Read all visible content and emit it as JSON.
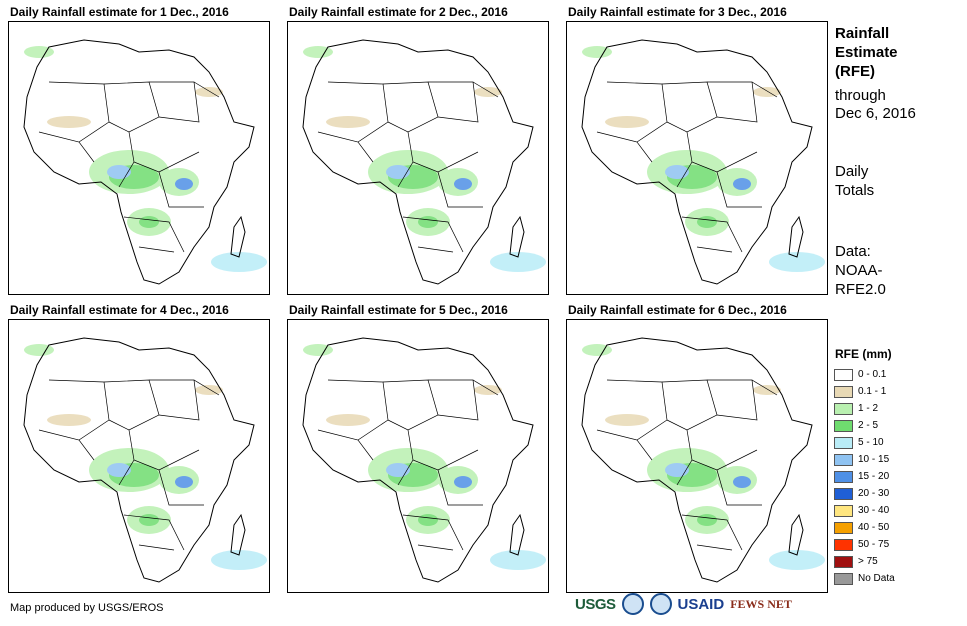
{
  "panels": [
    {
      "title": "Daily Rainfall estimate for 1 Dec., 2016"
    },
    {
      "title": "Daily Rainfall estimate for 2 Dec., 2016"
    },
    {
      "title": "Daily Rainfall estimate for 3 Dec., 2016"
    },
    {
      "title": "Daily Rainfall estimate for 4 Dec., 2016"
    },
    {
      "title": "Daily Rainfall estimate for 5 Dec., 2016"
    },
    {
      "title": "Daily Rainfall estimate for 6 Dec., 2016"
    }
  ],
  "sidebar": {
    "heading_1": "Rainfall",
    "heading_2": "Estimate",
    "heading_3": "(RFE)",
    "through_1": "through",
    "through_2": "Dec 6, 2016",
    "totals_1": "Daily",
    "totals_2": "Totals",
    "data_1": "Data:",
    "data_2": "NOAA-",
    "data_3": "RFE2.0"
  },
  "legend": {
    "title": "RFE (mm)",
    "items": [
      {
        "label": "0 - 0.1",
        "color": "#ffffff"
      },
      {
        "label": "0.1 - 1",
        "color": "#e8d9b5"
      },
      {
        "label": "1 - 2",
        "color": "#b9f0b0"
      },
      {
        "label": "2 - 5",
        "color": "#6fdc6f"
      },
      {
        "label": "5 - 10",
        "color": "#b9ecf7"
      },
      {
        "label": "10 - 15",
        "color": "#8fc3f2"
      },
      {
        "label": "15 - 20",
        "color": "#4f90e6"
      },
      {
        "label": "20 - 30",
        "color": "#1f5fd6"
      },
      {
        "label": "30 - 40",
        "color": "#ffe680"
      },
      {
        "label": "40 - 50",
        "color": "#f5a000"
      },
      {
        "label": "50 - 75",
        "color": "#ff3300"
      },
      {
        "label": "> 75",
        "color": "#a01010"
      },
      {
        "label": "No Data",
        "color": "#999999"
      }
    ]
  },
  "credit": "Map produced by USGS/EROS",
  "logos": {
    "usgs": "USGS",
    "usaid": "USAID",
    "fews": "FEWS NET"
  }
}
